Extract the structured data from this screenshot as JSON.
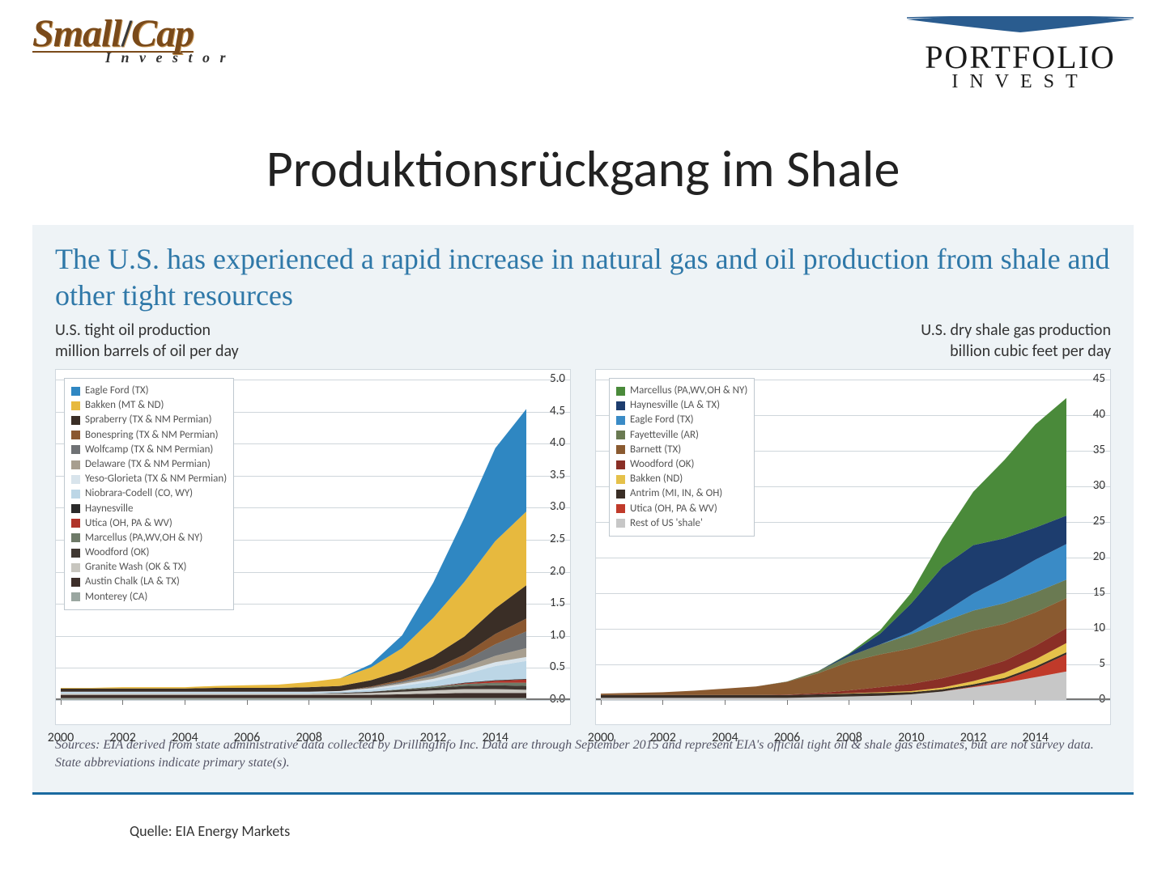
{
  "logos": {
    "left": {
      "line1a": "Small",
      "line1b": "Cap",
      "sub": "I n v e s t o r"
    },
    "right": {
      "line1": "PORTFOLIO",
      "line2": "INVEST",
      "wing_color": "#2a5c8f"
    }
  },
  "title": "Produktionsrückgang im Shale",
  "headline": "The U.S. has experienced a rapid increase in natural gas and oil production from shale and other tight resources",
  "left_panel": {
    "title": "U.S. tight oil production",
    "unit": "million barrels of oil per day"
  },
  "right_panel": {
    "title": "U.S. dry shale gas production",
    "unit": "billion cubic feet per day"
  },
  "sources": "Sources: EIA derived from state administrative data collected by DrillingInfo Inc. Data are through September 2015 and represent EIA's official tight oil & shale gas estimates, but are not survey data. State abbreviations indicate primary state(s).",
  "quelle": "Quelle: EIA Energy Markets",
  "oil": {
    "type": "stacked-area",
    "ylim": [
      0,
      5.0
    ],
    "ytick_step": 0.5,
    "xlim": [
      2000,
      2015
    ],
    "xticks": [
      2000,
      2002,
      2004,
      2006,
      2008,
      2010,
      2012,
      2014
    ],
    "grid_color": "#cfd6db",
    "bg": "#ffffff",
    "border": "#d0d8de",
    "legend": [
      {
        "label": "Eagle Ford (TX)",
        "color": "#2f87c2"
      },
      {
        "label": "Bakken (MT & ND)",
        "color": "#e7b93e"
      },
      {
        "label": "Spraberry (TX & NM Permian)",
        "color": "#3a2e26"
      },
      {
        "label": "Bonespring (TX & NM Permian)",
        "color": "#8a572f"
      },
      {
        "label": "Wolfcamp (TX & NM Permian)",
        "color": "#6f7275"
      },
      {
        "label": "Delaware (TX & NM Permian)",
        "color": "#a79e8f"
      },
      {
        "label": "Yeso-Glorieta (TX & NM Permian)",
        "color": "#d8e4ec"
      },
      {
        "label": "Niobrara-Codell (CO, WY)",
        "color": "#bcd6e6"
      },
      {
        "label": "Haynesville",
        "color": "#2a2a2a"
      },
      {
        "label": "Utica (OH, PA & WV)",
        "color": "#b0342a"
      },
      {
        "label": "Marcellus (PA,WV,OH & NY)",
        "color": "#6e7a68"
      },
      {
        "label": "Woodford (OK)",
        "color": "#403832"
      },
      {
        "label": "Granite Wash (OK & TX)",
        "color": "#c8c6bf"
      },
      {
        "label": "Austin Chalk (LA & TX)",
        "color": "#3d2f2a"
      },
      {
        "label": "Monterey (CA)",
        "color": "#9aa6a0"
      }
    ],
    "years": [
      2000,
      2001,
      2002,
      2003,
      2004,
      2005,
      2006,
      2007,
      2008,
      2009,
      2010,
      2011,
      2012,
      2013,
      2014,
      2015
    ],
    "series": [
      {
        "name": "Monterey (CA)",
        "color": "#9aa6a0",
        "v": [
          0.03,
          0.03,
          0.03,
          0.03,
          0.03,
          0.03,
          0.03,
          0.03,
          0.03,
          0.03,
          0.03,
          0.03,
          0.03,
          0.03,
          0.03,
          0.03
        ]
      },
      {
        "name": "Austin Chalk (LA & TX)",
        "color": "#3d2f2a",
        "v": [
          0.05,
          0.05,
          0.05,
          0.05,
          0.05,
          0.05,
          0.05,
          0.05,
          0.05,
          0.05,
          0.05,
          0.06,
          0.07,
          0.08,
          0.08,
          0.08
        ]
      },
      {
        "name": "Granite Wash (OK & TX)",
        "color": "#c8c6bf",
        "v": [
          0.02,
          0.02,
          0.02,
          0.02,
          0.02,
          0.02,
          0.02,
          0.02,
          0.02,
          0.02,
          0.03,
          0.04,
          0.05,
          0.06,
          0.06,
          0.05
        ]
      },
      {
        "name": "Woodford (OK)",
        "color": "#403832",
        "v": [
          0,
          0,
          0,
          0,
          0,
          0,
          0,
          0,
          0,
          0.01,
          0.02,
          0.03,
          0.04,
          0.05,
          0.06,
          0.06
        ]
      },
      {
        "name": "Marcellus (PA,WV,OH & NY)",
        "color": "#6e7a68",
        "v": [
          0,
          0,
          0,
          0,
          0,
          0,
          0,
          0,
          0,
          0,
          0,
          0.01,
          0.02,
          0.03,
          0.04,
          0.05
        ]
      },
      {
        "name": "Utica (OH, PA & WV)",
        "color": "#b0342a",
        "v": [
          0,
          0,
          0,
          0,
          0,
          0,
          0,
          0,
          0,
          0,
          0,
          0,
          0,
          0.01,
          0.03,
          0.05
        ]
      },
      {
        "name": "Haynesville",
        "color": "#2a2a2a",
        "v": [
          0,
          0,
          0,
          0,
          0,
          0,
          0,
          0,
          0,
          0,
          0,
          0,
          0,
          0.01,
          0.01,
          0.01
        ]
      },
      {
        "name": "Niobrara-Codell (CO, WY)",
        "color": "#bcd6e6",
        "v": [
          0.02,
          0.02,
          0.02,
          0.02,
          0.02,
          0.02,
          0.02,
          0.02,
          0.02,
          0.02,
          0.03,
          0.05,
          0.08,
          0.13,
          0.22,
          0.28
        ]
      },
      {
        "name": "Yeso-Glorieta (TX & NM Permian)",
        "color": "#d8e4ec",
        "v": [
          0.01,
          0.01,
          0.01,
          0.01,
          0.01,
          0.01,
          0.01,
          0.01,
          0.01,
          0.01,
          0.02,
          0.03,
          0.04,
          0.05,
          0.06,
          0.06
        ]
      },
      {
        "name": "Delaware (TX & NM Permian)",
        "color": "#a79e8f",
        "v": [
          0,
          0,
          0,
          0,
          0,
          0,
          0,
          0,
          0,
          0,
          0.01,
          0.02,
          0.04,
          0.06,
          0.1,
          0.14
        ]
      },
      {
        "name": "Wolfcamp (TX & NM Permian)",
        "color": "#6f7275",
        "v": [
          0,
          0,
          0,
          0,
          0,
          0,
          0,
          0,
          0,
          0,
          0.01,
          0.02,
          0.05,
          0.1,
          0.18,
          0.26
        ]
      },
      {
        "name": "Bonespring (TX & NM Permian)",
        "color": "#8a572f",
        "v": [
          0,
          0,
          0,
          0,
          0,
          0,
          0,
          0,
          0,
          0,
          0.01,
          0.03,
          0.06,
          0.1,
          0.16,
          0.2
        ]
      },
      {
        "name": "Spraberry (TX & NM Permian)",
        "color": "#3a2e26",
        "v": [
          0.05,
          0.05,
          0.05,
          0.05,
          0.05,
          0.06,
          0.06,
          0.06,
          0.07,
          0.08,
          0.1,
          0.14,
          0.2,
          0.28,
          0.4,
          0.52
        ]
      },
      {
        "name": "Bakken (MT & ND)",
        "color": "#e7b93e",
        "v": [
          0.01,
          0.01,
          0.02,
          0.02,
          0.02,
          0.03,
          0.04,
          0.05,
          0.08,
          0.12,
          0.2,
          0.35,
          0.6,
          0.85,
          1.05,
          1.15
        ]
      },
      {
        "name": "Eagle Ford (TX)",
        "color": "#2f87c2",
        "v": [
          0,
          0,
          0,
          0,
          0,
          0,
          0,
          0,
          0,
          0,
          0.05,
          0.2,
          0.55,
          1.0,
          1.45,
          1.6
        ]
      }
    ]
  },
  "gas": {
    "type": "stacked-area",
    "ylim": [
      0,
      45
    ],
    "ytick_step": 5,
    "xlim": [
      2000,
      2015
    ],
    "xticks": [
      2000,
      2002,
      2004,
      2006,
      2008,
      2010,
      2012,
      2014
    ],
    "grid_color": "#cfd6db",
    "bg": "#ffffff",
    "border": "#d0d8de",
    "legend": [
      {
        "label": "Marcellus (PA,WV,OH & NY)",
        "color": "#4a8a3a"
      },
      {
        "label": "Haynesville (LA & TX)",
        "color": "#1d3d6e"
      },
      {
        "label": "Eagle Ford (TX)",
        "color": "#3a8bc6"
      },
      {
        "label": "Fayetteville (AR)",
        "color": "#6a7a52"
      },
      {
        "label": "Barnett (TX)",
        "color": "#8a5a30"
      },
      {
        "label": "Woodford (OK)",
        "color": "#8a2f26"
      },
      {
        "label": "Bakken (ND)",
        "color": "#e5c14a"
      },
      {
        "label": "Antrim (MI, IN, & OH)",
        "color": "#3a2e26"
      },
      {
        "label": "Utica (OH, PA & WV)",
        "color": "#c03a2a"
      },
      {
        "label": "Rest of US 'shale'",
        "color": "#c7c7c7"
      }
    ],
    "years": [
      2000,
      2001,
      2002,
      2003,
      2004,
      2005,
      2006,
      2007,
      2008,
      2009,
      2010,
      2011,
      2012,
      2013,
      2014,
      2015
    ],
    "series": [
      {
        "name": "Rest of US 'shale'",
        "color": "#c7c7c7",
        "v": [
          0.3,
          0.3,
          0.3,
          0.3,
          0.3,
          0.3,
          0.3,
          0.4,
          0.5,
          0.6,
          0.8,
          1.2,
          1.8,
          2.4,
          3.2,
          4.0
        ]
      },
      {
        "name": "Utica (OH, PA & WV)",
        "color": "#c03a2a",
        "v": [
          0,
          0,
          0,
          0,
          0,
          0,
          0,
          0,
          0,
          0,
          0,
          0,
          0.1,
          0.4,
          1.2,
          2.4
        ]
      },
      {
        "name": "Antrim (MI, IN, & OH)",
        "color": "#3a2e26",
        "v": [
          0.4,
          0.4,
          0.4,
          0.4,
          0.4,
          0.4,
          0.4,
          0.4,
          0.4,
          0.4,
          0.3,
          0.3,
          0.3,
          0.3,
          0.3,
          0.3
        ]
      },
      {
        "name": "Bakken (ND)",
        "color": "#e5c14a",
        "v": [
          0,
          0,
          0,
          0,
          0,
          0,
          0,
          0,
          0.05,
          0.1,
          0.15,
          0.25,
          0.45,
          0.7,
          1.0,
          1.3
        ]
      },
      {
        "name": "Woodford (OK)",
        "color": "#8a2f26",
        "v": [
          0,
          0,
          0,
          0,
          0,
          0,
          0.05,
          0.15,
          0.4,
          0.7,
          1.0,
          1.3,
          1.5,
          1.7,
          1.9,
          2.1
        ]
      },
      {
        "name": "Barnett (TX)",
        "color": "#8a5a30",
        "v": [
          0.2,
          0.3,
          0.4,
          0.6,
          0.9,
          1.2,
          1.8,
          2.8,
          4.0,
          4.6,
          5.0,
          5.4,
          5.6,
          5.2,
          4.7,
          4.2
        ]
      },
      {
        "name": "Fayetteville (AR)",
        "color": "#6a7a52",
        "v": [
          0,
          0,
          0,
          0,
          0,
          0,
          0.05,
          0.3,
          0.8,
          1.4,
          2.0,
          2.5,
          2.8,
          2.9,
          2.8,
          2.6
        ]
      },
      {
        "name": "Eagle Ford (TX)",
        "color": "#3a8bc6",
        "v": [
          0,
          0,
          0,
          0,
          0,
          0,
          0,
          0,
          0,
          0,
          0.3,
          1.2,
          2.4,
          3.6,
          4.6,
          5.0
        ]
      },
      {
        "name": "Haynesville (LA & TX)",
        "color": "#1d3d6e",
        "v": [
          0,
          0,
          0,
          0,
          0,
          0,
          0,
          0,
          0.3,
          1.5,
          4.0,
          6.5,
          6.8,
          5.5,
          4.5,
          4.0
        ]
      },
      {
        "name": "Marcellus (PA,WV,OH & NY)",
        "color": "#4a8a3a",
        "v": [
          0,
          0,
          0,
          0,
          0,
          0,
          0,
          0,
          0.1,
          0.5,
          1.5,
          4.0,
          7.5,
          11.0,
          14.5,
          16.5
        ]
      }
    ]
  }
}
